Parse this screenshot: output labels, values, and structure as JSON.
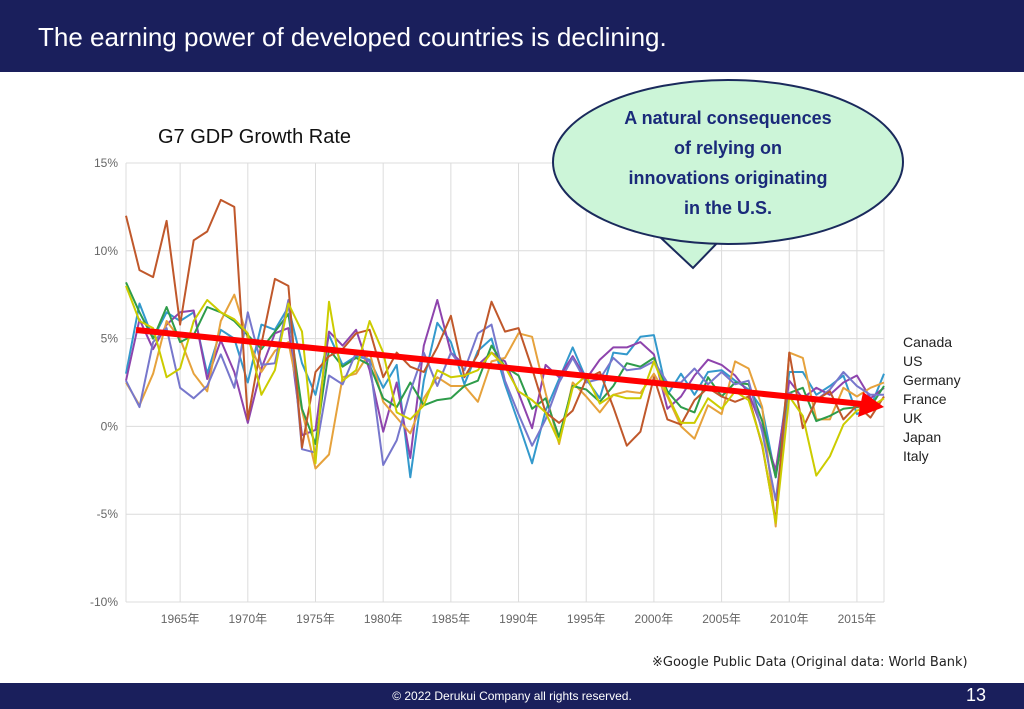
{
  "slide": {
    "heading": "The earning power of developed countries is declining.",
    "source_note": "※Google Public Data (Original data: World Bank)",
    "copyright": "© 2022 Derukui Company all rights reserved.",
    "page_number": "13",
    "header_color": "#1a1f5c"
  },
  "callout": {
    "lines": [
      "A natural consequences",
      "of relying  on",
      "innovations originating",
      "in the U.S."
    ],
    "fill": "#ccf5d8",
    "text_color": "#1a2a7a"
  },
  "chart_data": {
    "type": "line",
    "title": "G7 GDP Growth Rate",
    "xlabel": "",
    "ylabel": "",
    "x_tick_labels": [
      "1965年",
      "1970年",
      "1975年",
      "1980年",
      "1985年",
      "1990年",
      "1995年",
      "2000年",
      "2005年",
      "2010年",
      "2015年"
    ],
    "y_tick_labels": [
      "15%",
      "10%",
      "5%",
      "0%",
      "-5%",
      "-10%"
    ],
    "y_ticks": [
      15,
      10,
      5,
      0,
      -5,
      -10
    ],
    "xlim": [
      1961,
      2017
    ],
    "ylim": [
      -10,
      15
    ],
    "grid": true,
    "legend": "right",
    "legend_entries": [
      "Canada",
      "US",
      "Germany",
      "France",
      "UK",
      "Japan",
      "Italy"
    ],
    "x": [
      1961,
      1962,
      1963,
      1964,
      1965,
      1966,
      1967,
      1968,
      1969,
      1970,
      1971,
      1972,
      1973,
      1974,
      1975,
      1976,
      1977,
      1978,
      1979,
      1980,
      1981,
      1982,
      1983,
      1984,
      1985,
      1986,
      1987,
      1988,
      1989,
      1990,
      1991,
      1992,
      1993,
      1994,
      1995,
      1996,
      1997,
      1998,
      1999,
      2000,
      2001,
      2002,
      2003,
      2004,
      2005,
      2006,
      2007,
      2008,
      2009,
      2010,
      2011,
      2012,
      2013,
      2014,
      2015,
      2016,
      2017
    ],
    "series": [
      {
        "color": "#3399cc",
        "values": [
          3.0,
          7.0,
          5.0,
          6.5,
          6.0,
          6.5,
          3.0,
          5.5,
          5.0,
          2.5,
          5.8,
          5.5,
          6.8,
          3.6,
          1.8,
          5.2,
          3.5,
          4.0,
          3.8,
          2.2,
          3.5,
          -2.9,
          2.6,
          5.9,
          4.8,
          2.4,
          4.3,
          5.0,
          2.4,
          0.2,
          -2.1,
          0.9,
          2.7,
          4.5,
          2.7,
          1.6,
          4.2,
          4.1,
          5.1,
          5.2,
          1.8,
          3.0,
          1.8,
          3.1,
          3.2,
          2.6,
          2.1,
          1.0,
          -2.9,
          3.1,
          3.1,
          1.8,
          2.3,
          2.9,
          0.7,
          1.1,
          3.0
        ]
      },
      {
        "color": "#8e44ad",
        "values": [
          2.6,
          6.1,
          4.4,
          5.8,
          6.5,
          6.6,
          2.7,
          4.9,
          3.1,
          0.2,
          3.3,
          5.3,
          5.6,
          -0.5,
          -0.2,
          5.4,
          4.6,
          5.5,
          3.2,
          -0.3,
          2.5,
          -1.8,
          4.6,
          7.2,
          4.2,
          3.5,
          3.5,
          4.2,
          3.7,
          1.9,
          -0.1,
          3.5,
          2.8,
          4.0,
          2.7,
          3.8,
          4.5,
          4.5,
          4.8,
          4.1,
          1.0,
          1.7,
          2.9,
          3.8,
          3.5,
          2.9,
          1.9,
          -0.1,
          -2.5,
          2.6,
          1.6,
          2.2,
          1.8,
          2.5,
          2.9,
          1.6,
          2.2
        ]
      },
      {
        "color": "#e6a23c",
        "values": [
          2.5,
          1.2,
          3.0,
          6.0,
          5.0,
          3.0,
          2.0,
          6.0,
          7.5,
          5.0,
          3.1,
          4.3,
          4.8,
          0.9,
          -2.4,
          -1.6,
          2.8,
          3.0,
          4.2,
          1.4,
          0.5,
          -0.4,
          1.6,
          2.8,
          2.3,
          2.3,
          1.4,
          3.7,
          3.9,
          5.3,
          5.1,
          1.9,
          -1.0,
          2.5,
          1.7,
          0.8,
          1.8,
          2.0,
          1.9,
          3.0,
          1.7,
          0.0,
          -0.7,
          1.2,
          0.7,
          3.7,
          3.3,
          1.1,
          -5.7,
          4.2,
          3.9,
          0.4,
          0.4,
          2.2,
          1.7,
          2.2,
          2.5
        ]
      },
      {
        "color": "#2e9c4a",
        "values": [
          8.2,
          6.5,
          5.0,
          6.8,
          4.8,
          5.2,
          6.8,
          6.5,
          6.0,
          5.2,
          4.4,
          5.4,
          6.4,
          1.0,
          -1.0,
          4.4,
          3.4,
          3.9,
          3.5,
          1.6,
          1.1,
          2.5,
          1.2,
          1.5,
          1.6,
          2.3,
          2.6,
          4.6,
          3.4,
          2.9,
          1.0,
          1.6,
          -0.6,
          2.3,
          2.1,
          1.4,
          2.3,
          3.6,
          3.4,
          3.9,
          2.0,
          1.1,
          0.8,
          2.8,
          1.7,
          2.5,
          2.4,
          0.3,
          -2.9,
          1.9,
          2.2,
          0.3,
          0.6,
          1.0,
          1.1,
          1.1,
          2.3
        ]
      },
      {
        "color": "#7777cc",
        "values": [
          2.6,
          1.1,
          4.8,
          5.6,
          2.2,
          1.6,
          2.3,
          4.1,
          2.2,
          6.5,
          3.5,
          3.6,
          7.2,
          -1.3,
          -1.5,
          2.9,
          2.4,
          4.2,
          3.7,
          -2.2,
          -0.8,
          2.0,
          4.2,
          2.3,
          4.2,
          3.2,
          5.3,
          5.8,
          2.6,
          0.7,
          -1.1,
          0.4,
          2.5,
          3.9,
          2.5,
          2.7,
          3.9,
          3.2,
          3.3,
          3.7,
          2.5,
          2.5,
          3.3,
          2.4,
          3.1,
          2.4,
          2.6,
          -0.3,
          -4.2,
          1.9,
          1.5,
          1.5,
          2.1,
          3.1,
          2.3,
          1.8,
          1.8
        ]
      },
      {
        "color": "#c0582b",
        "values": [
          12.0,
          8.9,
          8.5,
          11.7,
          5.8,
          10.6,
          11.1,
          12.9,
          12.5,
          0.4,
          4.7,
          8.4,
          8.0,
          -1.2,
          3.1,
          4.0,
          4.4,
          5.3,
          5.5,
          2.8,
          4.2,
          3.4,
          3.1,
          4.5,
          6.3,
          2.8,
          4.1,
          7.1,
          5.4,
          5.6,
          3.3,
          0.8,
          0.2,
          0.9,
          2.7,
          3.1,
          1.1,
          -1.1,
          -0.3,
          2.8,
          0.4,
          0.1,
          1.5,
          2.2,
          1.7,
          1.4,
          1.7,
          -1.1,
          -5.4,
          4.2,
          -0.1,
          1.5,
          2.0,
          0.4,
          1.2,
          0.5,
          1.7
        ]
      },
      {
        "color": "#cccc00",
        "values": [
          8.0,
          6.0,
          5.6,
          2.8,
          3.3,
          6.0,
          7.2,
          6.5,
          6.1,
          5.3,
          1.8,
          3.2,
          7.0,
          5.4,
          -2.1,
          7.1,
          2.6,
          3.2,
          6.0,
          4.2,
          0.8,
          0.4,
          1.2,
          3.2,
          2.8,
          2.9,
          3.2,
          4.2,
          3.4,
          2.0,
          1.5,
          0.8,
          -0.9,
          2.2,
          2.9,
          1.3,
          1.8,
          1.6,
          1.6,
          3.7,
          1.8,
          0.2,
          0.2,
          1.6,
          1.0,
          2.0,
          1.5,
          -1.0,
          -5.5,
          1.7,
          0.6,
          -2.8,
          -1.7,
          0.1,
          0.9,
          1.1,
          1.6
        ]
      }
    ]
  }
}
